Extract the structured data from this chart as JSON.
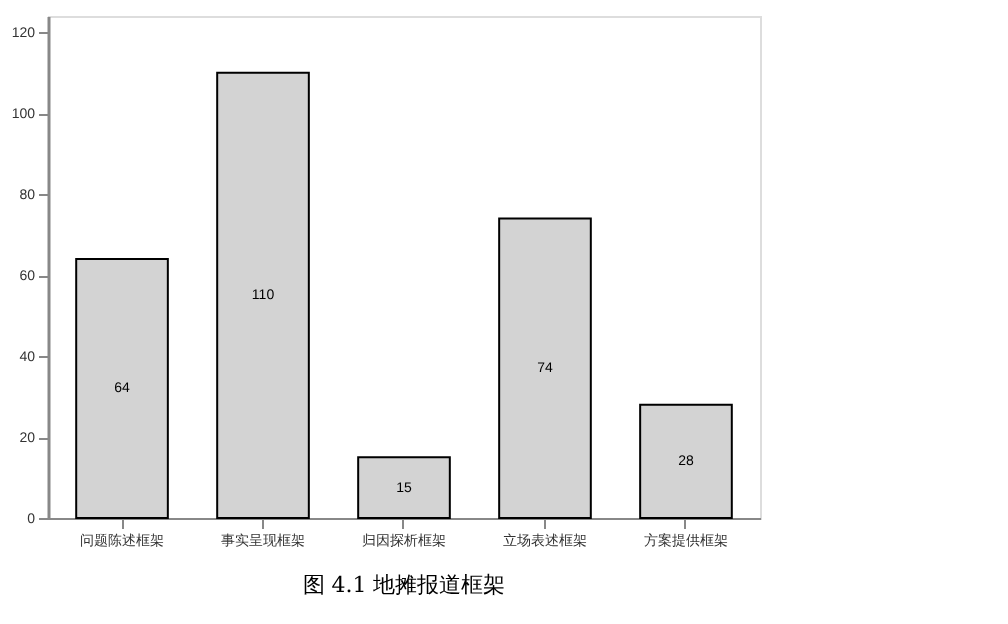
{
  "chart_data": {
    "type": "bar",
    "title": "图 4.1 地摊报道框架",
    "categories": [
      "问题陈述框架",
      "事实呈现框架",
      "归因探析框架",
      "立场表述框架",
      "方案提供框架"
    ],
    "values": [
      64,
      110,
      15,
      74,
      28
    ],
    "color": "#d3d3d3",
    "ylim": [
      0,
      124
    ],
    "yticks": [
      0,
      20,
      40,
      60,
      80,
      100,
      120
    ],
    "grid": false,
    "data_labels": true
  }
}
